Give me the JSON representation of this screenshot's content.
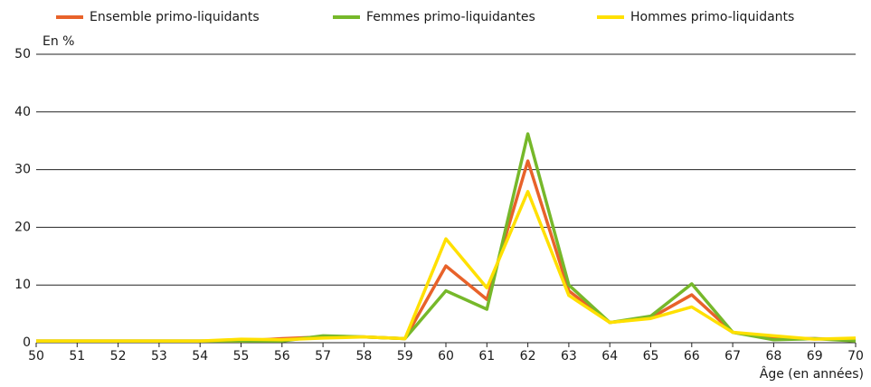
{
  "chart_data": {
    "type": "line",
    "y_label": "En %",
    "x_label": "Âge (en années)",
    "x": [
      50,
      51,
      52,
      53,
      54,
      55,
      56,
      57,
      58,
      59,
      60,
      61,
      62,
      63,
      64,
      65,
      66,
      67,
      68,
      69,
      70
    ],
    "series": [
      {
        "name": "Ensemble primo-liquidants",
        "color": "#e8622a",
        "values": [
          0.3,
          0.3,
          0.3,
          0.3,
          0.3,
          0.3,
          0.7,
          1.0,
          1.0,
          0.7,
          13.3,
          7.5,
          31.5,
          9.0,
          3.5,
          4.3,
          8.3,
          1.8,
          0.7,
          0.7,
          0.5
        ]
      },
      {
        "name": "Femmes primo-liquidantes",
        "color": "#76b82a",
        "values": [
          0.3,
          0.3,
          0.3,
          0.3,
          0.3,
          0.3,
          0.3,
          1.2,
          1.0,
          0.7,
          9.0,
          5.8,
          36.2,
          10.0,
          3.5,
          4.6,
          10.2,
          1.8,
          0.5,
          0.7,
          0.3
        ]
      },
      {
        "name": "Hommes primo-liquidants",
        "color": "#ffe000",
        "values": [
          0.3,
          0.3,
          0.3,
          0.3,
          0.3,
          0.6,
          0.5,
          0.8,
          1.0,
          0.7,
          18.0,
          9.5,
          26.2,
          8.2,
          3.5,
          4.2,
          6.2,
          1.8,
          1.2,
          0.6,
          0.8
        ]
      }
    ],
    "xlim": [
      50,
      70
    ],
    "xticks": [
      50,
      51,
      52,
      53,
      54,
      55,
      56,
      57,
      58,
      59,
      60,
      61,
      62,
      63,
      64,
      65,
      66,
      67,
      68,
      69,
      70
    ],
    "ylim": [
      0,
      50
    ],
    "yticks": [
      0,
      10,
      20,
      30,
      40,
      50
    ],
    "grid": true,
    "legend": "top"
  }
}
